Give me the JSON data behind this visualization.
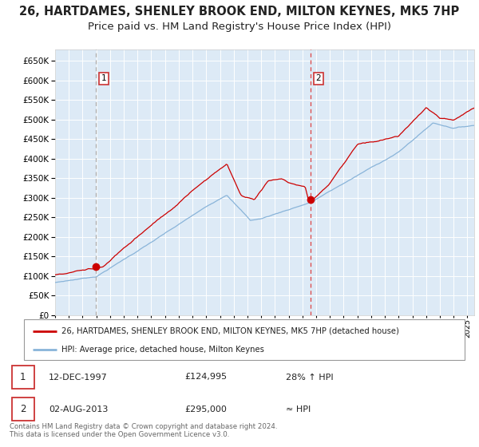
{
  "title": "26, HARTDAMES, SHENLEY BROOK END, MILTON KEYNES, MK5 7HP",
  "subtitle": "Price paid vs. HM Land Registry's House Price Index (HPI)",
  "xlim_start": 1995.0,
  "xlim_end": 2025.5,
  "ylim": [
    0,
    680000
  ],
  "yticks": [
    0,
    50000,
    100000,
    150000,
    200000,
    250000,
    300000,
    350000,
    400000,
    450000,
    500000,
    550000,
    600000,
    650000
  ],
  "background_color": "#ddeaf6",
  "grid_color": "#ffffff",
  "red_line_color": "#cc0000",
  "blue_line_color": "#89b4d9",
  "dashed1_color": "#aaaaaa",
  "dashed2_color": "#dd4444",
  "marker_color": "#cc0000",
  "sale1_x": 1997.95,
  "sale1_y": 124995,
  "sale2_x": 2013.58,
  "sale2_y": 295000,
  "legend_red": "26, HARTDAMES, SHENLEY BROOK END, MILTON KEYNES, MK5 7HP (detached house)",
  "legend_blue": "HPI: Average price, detached house, Milton Keynes",
  "table_row1": [
    "1",
    "12-DEC-1997",
    "£124,995",
    "28% ↑ HPI"
  ],
  "table_row2": [
    "2",
    "02-AUG-2013",
    "£295,000",
    "≈ HPI"
  ],
  "footer": "Contains HM Land Registry data © Crown copyright and database right 2024.\nThis data is licensed under the Open Government Licence v3.0.",
  "title_fontsize": 10.5,
  "subtitle_fontsize": 9.5
}
